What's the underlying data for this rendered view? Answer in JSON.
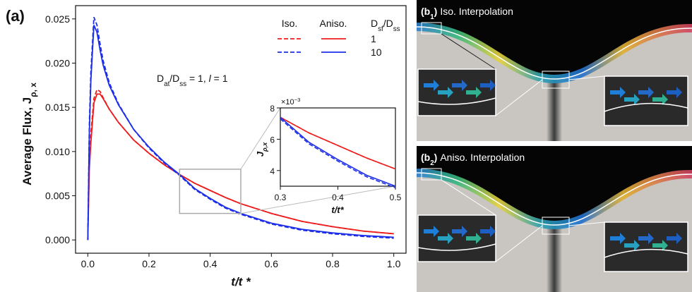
{
  "figure_label": "(a)",
  "chart_data": [
    {
      "type": "line",
      "y_label": [
        {
          "text": "Average Flux, J"
        },
        {
          "text": "ρ, x",
          "sub": true
        }
      ],
      "x_label": "t/t *",
      "annotation": [
        {
          "text": "D"
        },
        {
          "text": "at",
          "sub": true
        },
        {
          "text": "/D"
        },
        {
          "text": "ss",
          "sub": true
        },
        {
          "text": " = 1,    "
        },
        {
          "text": "l",
          "italic": true
        },
        {
          "text": " = 1"
        }
      ],
      "legend": {
        "columns": [
          "Iso.",
          "Aniso."
        ],
        "rows": [
          "1",
          "10"
        ],
        "title": [
          {
            "text": "D"
          },
          {
            "text": "sf",
            "sub": true
          },
          {
            "text": "/D"
          },
          {
            "text": "ss",
            "sub": true
          }
        ]
      },
      "x": [
        0,
        0.005,
        0.01,
        0.02,
        0.03,
        0.04,
        0.05,
        0.07,
        0.1,
        0.15,
        0.2,
        0.25,
        0.3,
        0.35,
        0.4,
        0.45,
        0.5,
        0.6,
        0.7,
        0.8,
        0.9,
        1.0
      ],
      "series": [
        {
          "color": "#ee1c1c",
          "dash": true,
          "values": [
            0,
            0.009,
            0.012,
            0.016,
            0.017,
            0.0168,
            0.0161,
            0.0148,
            0.0133,
            0.0113,
            0.0098,
            0.0085,
            0.0074,
            0.0064,
            0.0056,
            0.0048,
            0.0041,
            0.003,
            0.0021,
            0.0015,
            0.001,
            0.0007
          ]
        },
        {
          "color": "#ee1c1c",
          "dash": false,
          "values": [
            0,
            0.008,
            0.011,
            0.0155,
            0.0165,
            0.0165,
            0.016,
            0.0148,
            0.0133,
            0.0113,
            0.0098,
            0.0085,
            0.0074,
            0.0064,
            0.0056,
            0.0048,
            0.0041,
            0.003,
            0.0021,
            0.0015,
            0.001,
            0.0007
          ]
        },
        {
          "color": "#1c2ee8",
          "dash": true,
          "values": [
            0,
            0.013,
            0.019,
            0.0252,
            0.0243,
            0.0222,
            0.0203,
            0.0178,
            0.0154,
            0.0125,
            0.0104,
            0.0087,
            0.0073,
            0.0057,
            0.0046,
            0.0036,
            0.0029,
            0.0018,
            0.0011,
            0.0007,
            0.0004,
            0.0002
          ]
        },
        {
          "color": "#1c2ee8",
          "dash": false,
          "values": [
            0,
            0.012,
            0.018,
            0.0243,
            0.0235,
            0.0215,
            0.0198,
            0.0175,
            0.0153,
            0.0125,
            0.0105,
            0.0088,
            0.0074,
            0.0058,
            0.0047,
            0.0037,
            0.003,
            0.0019,
            0.0012,
            0.0008,
            0.0005,
            0.0003
          ]
        }
      ],
      "xlim": [
        -0.04,
        1.04
      ],
      "xticks": [
        {
          "value": 0,
          "label": "0.0"
        },
        {
          "value": 0.2,
          "label": "0.2"
        },
        {
          "value": 0.4,
          "label": "0.4"
        },
        {
          "value": 0.6,
          "label": "0.6"
        },
        {
          "value": 0.8,
          "label": "0.8"
        },
        {
          "value": 1,
          "label": "1.0"
        }
      ],
      "ylim": [
        -0.0015,
        0.0265
      ],
      "yticks": [
        {
          "value": 0,
          "label": "0.000"
        },
        {
          "value": 0.005,
          "label": "0.005"
        },
        {
          "value": 0.01,
          "label": "0.010"
        },
        {
          "value": 0.015,
          "label": "0.015"
        },
        {
          "value": 0.02,
          "label": "0.020"
        },
        {
          "value": 0.025,
          "label": "0.025"
        }
      ]
    },
    {
      "type": "line",
      "y_label": [
        {
          "text": "J"
        },
        {
          "text": "ρ,x",
          "sub": true
        }
      ],
      "x_label": "t/t*",
      "multiplier": [
        {
          "text": "×10"
        },
        {
          "text": "−3",
          "sup": true
        }
      ],
      "x": [
        0.3,
        0.35,
        0.4,
        0.45,
        0.5
      ],
      "series": [
        {
          "color": "#ee1c1c",
          "dash": true,
          "values": [
            0.0074,
            0.0064,
            0.0056,
            0.0048,
            0.0041
          ]
        },
        {
          "color": "#ee1c1c",
          "dash": false,
          "values": [
            0.0074,
            0.0064,
            0.0056,
            0.0048,
            0.0041
          ]
        },
        {
          "color": "#1c2ee8",
          "dash": true,
          "values": [
            0.0073,
            0.0057,
            0.0046,
            0.0036,
            0.0029
          ]
        },
        {
          "color": "#1c2ee8",
          "dash": false,
          "values": [
            0.0074,
            0.0058,
            0.0047,
            0.0037,
            0.003
          ]
        }
      ],
      "xlim": [
        0.3,
        0.5
      ],
      "xticks": [
        0.3,
        0.4,
        0.5
      ],
      "ylim": [
        0.003,
        0.008
      ],
      "yticks": [
        {
          "value": 0.004,
          "label": "4"
        },
        {
          "value": 0.006,
          "label": "6"
        },
        {
          "value": 0.008,
          "label": "8"
        }
      ]
    }
  ],
  "panels": [
    {
      "label": [
        {
          "text": "(b"
        },
        {
          "text": "1",
          "sub": true
        },
        {
          "text": ")"
        }
      ],
      "title": "Iso. Interpolation"
    },
    {
      "label": [
        {
          "text": "(b"
        },
        {
          "text": "2",
          "sub": true
        },
        {
          "text": ")"
        }
      ],
      "title": "Aniso. Interpolation"
    }
  ]
}
